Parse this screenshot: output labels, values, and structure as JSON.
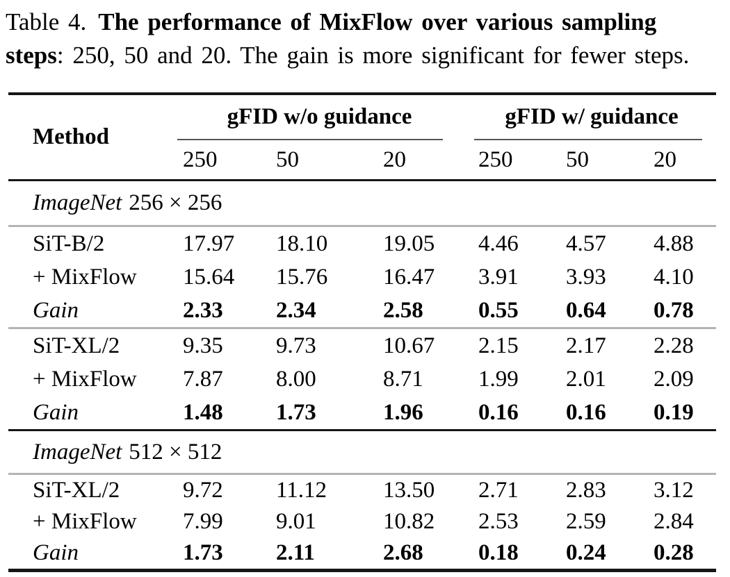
{
  "caption": {
    "label": "Table 4.",
    "bold_line1": "The performance of MixFlow over various sampling",
    "bold_line2": "steps",
    "rest_line2": ": 250, 50 and 20. The gain is more significant for fewer steps."
  },
  "table": {
    "method_header": "Method",
    "group_headers": [
      "gFID w/o guidance",
      "gFID w/ guidance"
    ],
    "step_headers": [
      "250",
      "50",
      "20",
      "250",
      "50",
      "20"
    ],
    "sections": [
      {
        "heading_italic": "ImageNet",
        "heading_rest": "256 × 256",
        "blocks": [
          {
            "rows": [
              {
                "method": "SiT-B/2",
                "values": [
                  "17.97",
                  "18.10",
                  "19.05",
                  "4.46",
                  "4.57",
                  "4.88"
                ]
              },
              {
                "method": "+ MixFlow",
                "values": [
                  "15.64",
                  "15.76",
                  "16.47",
                  "3.91",
                  "3.93",
                  "4.10"
                ]
              },
              {
                "method": "Gain",
                "values": [
                  "2.33",
                  "2.34",
                  "2.58",
                  "0.55",
                  "0.64",
                  "0.78"
                ]
              }
            ]
          },
          {
            "rows": [
              {
                "method": "SiT-XL/2",
                "values": [
                  "9.35",
                  "9.73",
                  "10.67",
                  "2.15",
                  "2.17",
                  "2.28"
                ]
              },
              {
                "method": "+ MixFlow",
                "values": [
                  "7.87",
                  "8.00",
                  "8.71",
                  "1.99",
                  "2.01",
                  "2.09"
                ]
              },
              {
                "method": "Gain",
                "values": [
                  "1.48",
                  "1.73",
                  "1.96",
                  "0.16",
                  "0.16",
                  "0.19"
                ]
              }
            ]
          }
        ]
      },
      {
        "heading_italic": "ImageNet",
        "heading_rest": "512 × 512",
        "blocks": [
          {
            "rows": [
              {
                "method": "SiT-XL/2",
                "values": [
                  "9.72",
                  "11.12",
                  "13.50",
                  "2.71",
                  "2.83",
                  "3.12"
                ]
              },
              {
                "method": "+ MixFlow",
                "values": [
                  "7.99",
                  "9.01",
                  "10.82",
                  "2.53",
                  "2.59",
                  "2.84"
                ]
              },
              {
                "method": "Gain",
                "values": [
                  "1.73",
                  "2.11",
                  "2.68",
                  "0.18",
                  "0.24",
                  "0.28"
                ]
              }
            ]
          }
        ]
      }
    ]
  },
  "colors": {
    "text": "#000000",
    "background": "#ffffff",
    "rule_black": "#161616",
    "rule_gray": "#b4b4b4",
    "cmidrule_gray": "#555555"
  }
}
